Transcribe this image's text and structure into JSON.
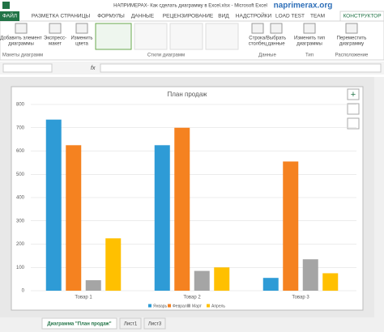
{
  "window": {
    "title": "НАПРИМЕРАХ- Как сделать диаграмму в Excel.xlsx - Microsoft Excel",
    "brand": "naprimerax.org"
  },
  "ribbon": {
    "tabs": [
      "ФАЙЛ",
      "РАЗМЕТКА СТРАНИЦЫ",
      "ФОРМУЛЫ",
      "ДАННЫЕ",
      "РЕЦЕНЗИРОВАНИЕ",
      "ВИД",
      "НАДСТРОЙКИ",
      "LOAD TEST",
      "TEAM",
      "КОНСТРУКТОР"
    ],
    "buttons": [
      [
        "Добавить элемент",
        "диаграммы"
      ],
      [
        "Экспресс-",
        "макет"
      ],
      [
        "Изменить",
        "цвета"
      ],
      [
        "Строка/",
        "столбец"
      ],
      [
        "Выбрать",
        "данные"
      ],
      [
        "Изменить тип",
        "диаграммы"
      ],
      [
        "Переместить",
        "диаграмму"
      ]
    ],
    "groups": [
      "Макеты диаграмм",
      "Стили диаграмм",
      "Данные",
      "Тип",
      "Расположение"
    ]
  },
  "formula_bar": {
    "function_label": "fx"
  },
  "sheet_tabs": [
    "Диаграмма \"План продаж\"",
    "Лист1",
    "Лист3"
  ],
  "chart_data": {
    "type": "bar",
    "title": "План продаж",
    "categories": [
      "Товар 1",
      "Товар 2",
      "Товар 3"
    ],
    "series": [
      {
        "name": "Январь",
        "color": "#2e9bd6",
        "values": [
          735,
          625,
          55
        ]
      },
      {
        "name": "Февраль",
        "color": "#f58220",
        "values": [
          625,
          700,
          555
        ]
      },
      {
        "name": "Март",
        "color": "#a5a5a5",
        "values": [
          45,
          85,
          135
        ]
      },
      {
        "name": "Апрель",
        "color": "#ffc000",
        "values": [
          225,
          100,
          75
        ]
      }
    ],
    "ylim": [
      0,
      800
    ],
    "yticks": [
      0,
      100,
      200,
      300,
      400,
      500,
      600,
      700,
      800
    ],
    "grid": true,
    "legend": "bottom"
  }
}
